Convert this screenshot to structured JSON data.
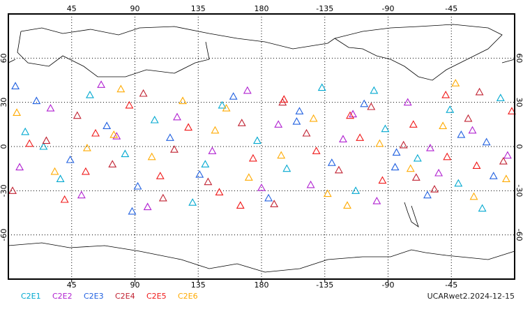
{
  "chart_data": {
    "type": "scatter",
    "xlim": [
      0,
      360
    ],
    "ylim": [
      -90,
      90
    ],
    "xticks": [
      45,
      90,
      135,
      180,
      {
        "value": 225,
        "label": "-135"
      },
      {
        "value": 270,
        "label": "-90"
      },
      {
        "value": 315,
        "label": "-45"
      }
    ],
    "yticks": [
      -60,
      -30,
      0,
      30,
      60
    ],
    "grid": true,
    "footer": "UCARwet2.2024-12-15",
    "series": [
      {
        "name": "C2E1",
        "color": "#00a8d0",
        "x": [
          12,
          37,
          58,
          83,
          104,
          131,
          152,
          177,
          198,
          223,
          247,
          268,
          291,
          314,
          337,
          350,
          25,
          140,
          260,
          320
        ],
        "values": [
          10,
          -22,
          35,
          -5,
          18,
          -38,
          28,
          4,
          -15,
          40,
          -30,
          12,
          -8,
          25,
          -42,
          33,
          0,
          -12,
          38,
          -25
        ]
      },
      {
        "name": "C2E2",
        "color": "#b020d0",
        "x": [
          8,
          30,
          52,
          77,
          99,
          120,
          145,
          170,
          192,
          215,
          238,
          262,
          284,
          306,
          330,
          355,
          66,
          180,
          245,
          300
        ],
        "values": [
          -14,
          26,
          -33,
          7,
          -41,
          20,
          -3,
          38,
          15,
          -26,
          5,
          -37,
          30,
          -18,
          11,
          -6,
          42,
          -28,
          22,
          -1
        ]
      },
      {
        "name": "C2E3",
        "color": "#2060e0",
        "x": [
          20,
          44,
          70,
          92,
          115,
          136,
          160,
          185,
          207,
          230,
          253,
          276,
          298,
          322,
          345,
          5,
          88,
          205,
          275,
          340
        ],
        "values": [
          31,
          -9,
          14,
          -27,
          6,
          -19,
          34,
          -35,
          24,
          -11,
          29,
          -4,
          -33,
          8,
          -20,
          41,
          -44,
          17,
          -14,
          3
        ]
      },
      {
        "name": "C2E4",
        "color": "#c02030",
        "x": [
          3,
          27,
          49,
          74,
          96,
          118,
          142,
          166,
          189,
          212,
          235,
          258,
          281,
          303,
          327,
          352,
          110,
          195,
          290,
          335
        ],
        "values": [
          -30,
          4,
          21,
          -12,
          36,
          -2,
          -24,
          16,
          -39,
          9,
          -16,
          27,
          1,
          -29,
          19,
          -10,
          -35,
          30,
          -21,
          37
        ]
      },
      {
        "name": "C2E5",
        "color": "#f01818",
        "x": [
          15,
          40,
          62,
          86,
          108,
          128,
          150,
          174,
          196,
          219,
          243,
          266,
          288,
          311,
          333,
          358,
          55,
          165,
          250,
          312
        ],
        "values": [
          2,
          -36,
          9,
          28,
          -20,
          13,
          -31,
          -8,
          32,
          -3,
          21,
          -23,
          15,
          35,
          -13,
          24,
          -17,
          -40,
          6,
          -7
        ]
      },
      {
        "name": "C2E6",
        "color": "#ffaa00",
        "x": [
          6,
          33,
          56,
          80,
          102,
          124,
          147,
          171,
          194,
          217,
          241,
          264,
          286,
          309,
          331,
          354,
          75,
          155,
          227,
          318
        ],
        "values": [
          23,
          -17,
          -1,
          39,
          -7,
          31,
          11,
          -21,
          -6,
          19,
          -40,
          2,
          -15,
          14,
          -34,
          -22,
          8,
          26,
          -32,
          43
        ]
      }
    ]
  }
}
